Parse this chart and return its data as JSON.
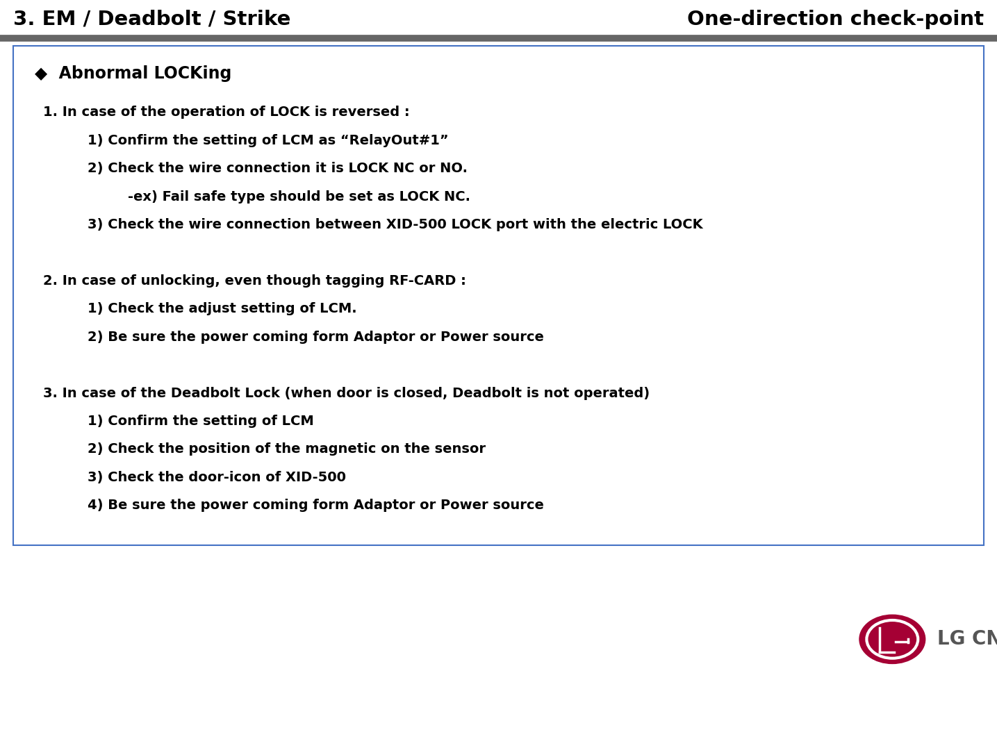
{
  "title_left": "3. EM / Deadbolt / Strike",
  "title_right": "One-direction check-point",
  "title_text_color": "#000000",
  "separator_color": "#666666",
  "header_text": "◆  Abnormal LOCKing",
  "box_border_color": "#4472C4",
  "box_bg_color": "#ffffff",
  "content_lines": [
    {
      "text": "1. In case of the operation of LOCK is reversed :",
      "indent": 0.03,
      "blank_after": false
    },
    {
      "text": "1) Confirm the setting of LCM as “RelayOut#1”",
      "indent": 0.075,
      "blank_after": false
    },
    {
      "text": "2) Check the wire connection it is LOCK NC or NO.",
      "indent": 0.075,
      "blank_after": false
    },
    {
      "text": "-ex) Fail safe type should be set as LOCK NC.",
      "indent": 0.115,
      "blank_after": false
    },
    {
      "text": "3) Check the wire connection between XID-500 LOCK port with the electric LOCK",
      "indent": 0.075,
      "blank_after": true
    },
    {
      "text": "2. In case of unlocking, even though tagging RF-CARD :",
      "indent": 0.03,
      "blank_after": false
    },
    {
      "text": "1) Check the adjust setting of LCM.",
      "indent": 0.075,
      "blank_after": false
    },
    {
      "text": "2) Be sure the power coming form Adaptor or Power source",
      "indent": 0.075,
      "blank_after": true
    },
    {
      "text": "3. In case of the Deadbolt Lock (when door is closed, Deadbolt is not operated)",
      "indent": 0.03,
      "blank_after": false
    },
    {
      "text": "1) Confirm the setting of LCM",
      "indent": 0.075,
      "blank_after": false
    },
    {
      "text": "2) Check the position of the magnetic on the sensor",
      "indent": 0.075,
      "blank_after": false
    },
    {
      "text": "3) Check the door-icon of XID-500",
      "indent": 0.075,
      "blank_after": false
    },
    {
      "text": "4) Be sure the power coming form Adaptor or Power source",
      "indent": 0.075,
      "blank_after": false
    }
  ],
  "logo_circle_color": "#a50034",
  "logo_text_color": "#555555",
  "bg_color": "#ffffff",
  "fig_width": 14.35,
  "fig_height": 10.64
}
